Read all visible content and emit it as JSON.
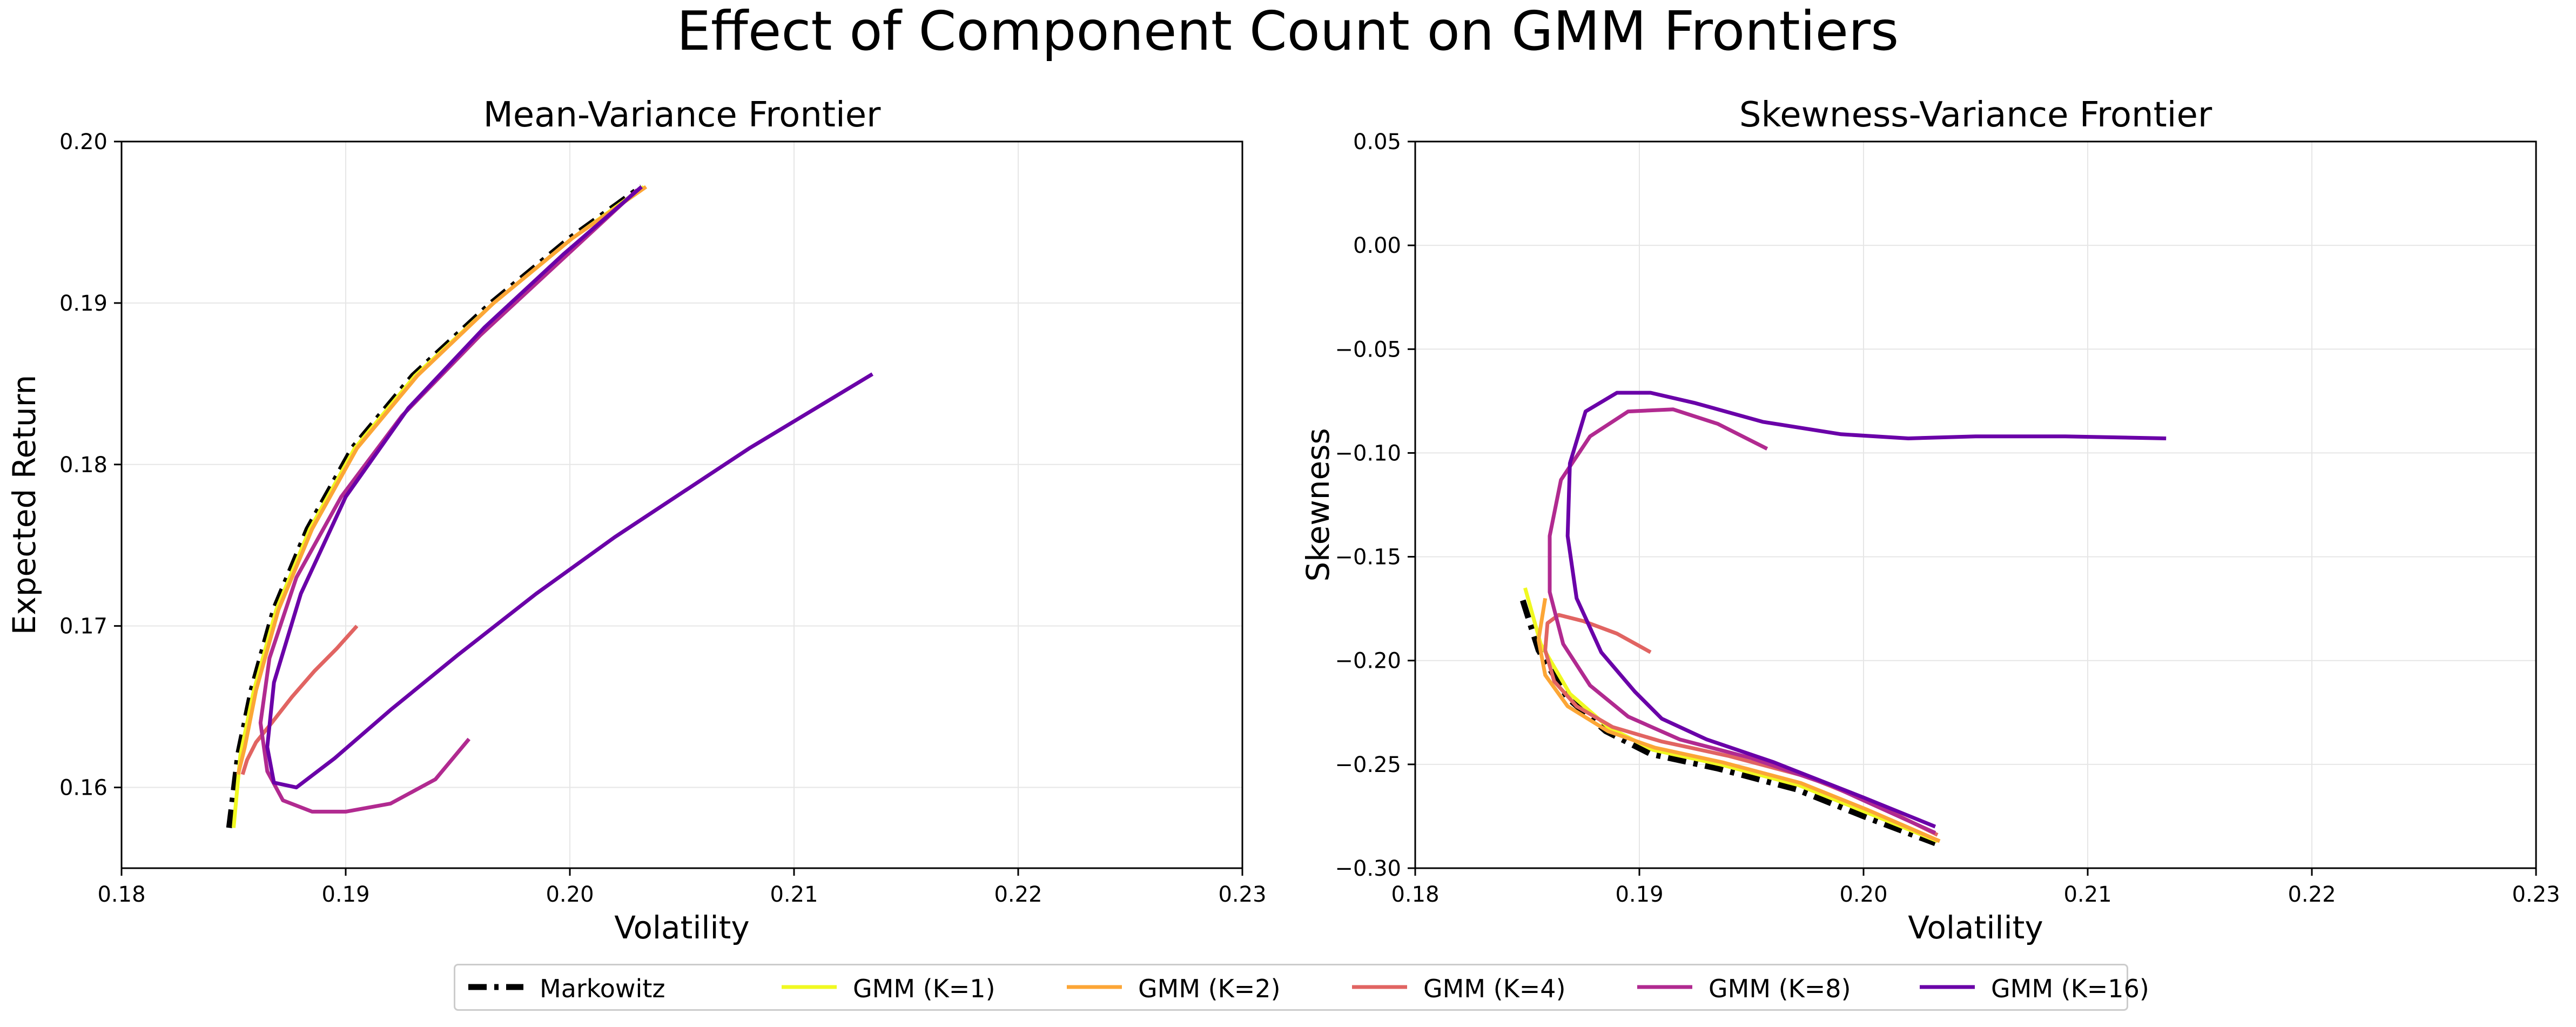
{
  "figure_title": "Effect of Component Count on GMM Frontiers",
  "colors": {
    "markowitz": "#000000",
    "k1": "#f0f921",
    "k2": "#fca636",
    "k4": "#e16462",
    "k8": "#b12a90",
    "k16": "#6a00a8"
  },
  "legend": {
    "placement": "bottom-center",
    "entries": [
      {
        "key": "markowitz",
        "label": "Markowitz"
      },
      {
        "key": "k1",
        "label": "GMM (K=1)"
      },
      {
        "key": "k2",
        "label": "GMM (K=2)"
      },
      {
        "key": "k4",
        "label": "GMM (K=4)"
      },
      {
        "key": "k8",
        "label": "GMM (K=8)"
      },
      {
        "key": "k16",
        "label": "GMM (K=16)"
      }
    ]
  },
  "chart_data": [
    {
      "type": "line",
      "title": "Mean-Variance Frontier",
      "xlabel": "Volatility",
      "ylabel": "Expected Return",
      "xlim": [
        0.18,
        0.23
      ],
      "ylim": [
        0.155,
        0.2
      ],
      "xticks": [
        "0.18",
        "0.19",
        "0.20",
        "0.21",
        "0.22",
        "0.23"
      ],
      "yticks": [
        "0.16",
        "0.17",
        "0.18",
        "0.19",
        "0.20"
      ],
      "grid": true,
      "series": [
        {
          "name": "Markowitz",
          "key": "markowitz",
          "style": "dashdot",
          "x": [
            0.1848,
            0.1852,
            0.1858,
            0.1868,
            0.1883,
            0.1903,
            0.193,
            0.1965,
            0.2,
            0.2032
          ],
          "y": [
            0.1575,
            0.162,
            0.166,
            0.171,
            0.176,
            0.181,
            0.1855,
            0.19,
            0.194,
            0.1972
          ]
        },
        {
          "name": "GMM (K=1)",
          "key": "k1",
          "style": "solid",
          "x": [
            0.185,
            0.1853,
            0.1859,
            0.1869,
            0.1884,
            0.1904,
            0.1931,
            0.1966,
            0.2001,
            0.2033
          ],
          "y": [
            0.1575,
            0.162,
            0.166,
            0.171,
            0.176,
            0.181,
            0.1855,
            0.19,
            0.194,
            0.1972
          ]
        },
        {
          "name": "GMM (K=2)",
          "key": "k2",
          "style": "solid",
          "x": [
            0.1852,
            0.1855,
            0.186,
            0.187,
            0.1885,
            0.1905,
            0.1932,
            0.1966,
            0.2001,
            0.2034
          ],
          "y": [
            0.1608,
            0.1625,
            0.166,
            0.171,
            0.176,
            0.181,
            0.1855,
            0.19,
            0.194,
            0.1972
          ]
        },
        {
          "name": "GMM (K=4)",
          "key": "k4",
          "style": "solid",
          "x": [
            0.1854,
            0.1856,
            0.186,
            0.1867,
            0.1876,
            0.1886,
            0.1896,
            0.1905
          ],
          "y": [
            0.1608,
            0.1617,
            0.1628,
            0.164,
            0.1656,
            0.1672,
            0.1686,
            0.17
          ]
        },
        {
          "name": "GMM (K=8)",
          "key": "k8",
          "style": "solid",
          "x": [
            0.1955,
            0.194,
            0.192,
            0.19,
            0.1885,
            0.1872,
            0.1865,
            0.1862,
            0.1866,
            0.1878,
            0.1898,
            0.1925,
            0.196,
            0.1995,
            0.203
          ],
          "y": [
            0.163,
            0.1605,
            0.159,
            0.1585,
            0.1585,
            0.1592,
            0.161,
            0.164,
            0.168,
            0.173,
            0.178,
            0.183,
            0.188,
            0.1925,
            0.197
          ]
        },
        {
          "name": "GMM (K=16)",
          "key": "k16",
          "style": "solid",
          "x": [
            0.2135,
            0.208,
            0.202,
            0.1985,
            0.195,
            0.192,
            0.1895,
            0.1878,
            0.1868,
            0.1865,
            0.1868,
            0.188,
            0.19,
            0.1928,
            0.1962,
            0.1997,
            0.2032
          ],
          "y": [
            0.1856,
            0.181,
            0.1755,
            0.172,
            0.1682,
            0.1648,
            0.1618,
            0.16,
            0.1603,
            0.1625,
            0.1665,
            0.172,
            0.178,
            0.1835,
            0.1885,
            0.193,
            0.1972
          ]
        }
      ]
    },
    {
      "type": "line",
      "title": "Skewness-Variance Frontier",
      "xlabel": "Volatility",
      "ylabel": "Skewness",
      "xlim": [
        0.18,
        0.23
      ],
      "ylim": [
        -0.3,
        0.05
      ],
      "xticks": [
        "0.18",
        "0.19",
        "0.20",
        "0.21",
        "0.22",
        "0.23"
      ],
      "yticks": [
        "−0.30",
        "−0.25",
        "−0.20",
        "−0.15",
        "−0.10",
        "−0.05",
        "0.00",
        "0.05"
      ],
      "grid": true,
      "series": [
        {
          "name": "Markowitz",
          "key": "markowitz",
          "style": "dashdot",
          "x": [
            0.1848,
            0.1855,
            0.1868,
            0.1885,
            0.1905,
            0.1935,
            0.197,
            0.2,
            0.2032
          ],
          "y": [
            -0.171,
            -0.195,
            -0.218,
            -0.234,
            -0.245,
            -0.252,
            -0.262,
            -0.275,
            -0.288
          ]
        },
        {
          "name": "GMM (K=1)",
          "key": "k1",
          "style": "solid",
          "x": [
            0.1849,
            0.1856,
            0.1869,
            0.1886,
            0.1906,
            0.1936,
            0.1971,
            0.2001,
            0.2033
          ],
          "y": [
            -0.165,
            -0.192,
            -0.216,
            -0.232,
            -0.243,
            -0.25,
            -0.26,
            -0.273,
            -0.287
          ]
        },
        {
          "name": "GMM (K=2)",
          "key": "k2",
          "style": "solid",
          "x": [
            0.1858,
            0.1855,
            0.1858,
            0.1868,
            0.1886,
            0.1907,
            0.1937,
            0.1972,
            0.2002,
            0.2034
          ],
          "y": [
            -0.17,
            -0.19,
            -0.207,
            -0.222,
            -0.234,
            -0.242,
            -0.249,
            -0.259,
            -0.272,
            -0.287
          ]
        },
        {
          "name": "GMM (K=4)",
          "key": "k4",
          "style": "solid",
          "x": [
            0.1905,
            0.189,
            0.1875,
            0.1864,
            0.1859,
            0.1858,
            0.1862,
            0.1872,
            0.1888,
            0.191,
            0.194,
            0.1975,
            0.2005,
            0.2033
          ],
          "y": [
            -0.196,
            -0.187,
            -0.181,
            -0.178,
            -0.182,
            -0.195,
            -0.21,
            -0.222,
            -0.232,
            -0.239,
            -0.246,
            -0.256,
            -0.269,
            -0.284
          ]
        },
        {
          "name": "GMM (K=8)",
          "key": "k8",
          "style": "solid",
          "x": [
            0.1957,
            0.1935,
            0.1915,
            0.1895,
            0.1878,
            0.1865,
            0.186,
            0.186,
            0.1866,
            0.1878,
            0.1895,
            0.1918,
            0.195,
            0.1985,
            0.2032
          ],
          "y": [
            -0.098,
            -0.086,
            -0.079,
            -0.08,
            -0.092,
            -0.113,
            -0.14,
            -0.167,
            -0.192,
            -0.212,
            -0.227,
            -0.238,
            -0.247,
            -0.26,
            -0.283
          ]
        },
        {
          "name": "GMM (K=16)",
          "key": "k16",
          "style": "solid",
          "x": [
            0.2135,
            0.209,
            0.205,
            0.202,
            0.199,
            0.1955,
            0.1925,
            0.1905,
            0.189,
            0.1876,
            0.1869,
            0.1868,
            0.1872,
            0.1883,
            0.1898,
            0.191,
            0.193,
            0.196,
            0.2,
            0.2032
          ],
          "y": [
            -0.093,
            -0.092,
            -0.092,
            -0.093,
            -0.091,
            -0.085,
            -0.076,
            -0.071,
            -0.071,
            -0.08,
            -0.105,
            -0.14,
            -0.17,
            -0.196,
            -0.215,
            -0.228,
            -0.238,
            -0.249,
            -0.266,
            -0.28
          ]
        }
      ]
    }
  ]
}
